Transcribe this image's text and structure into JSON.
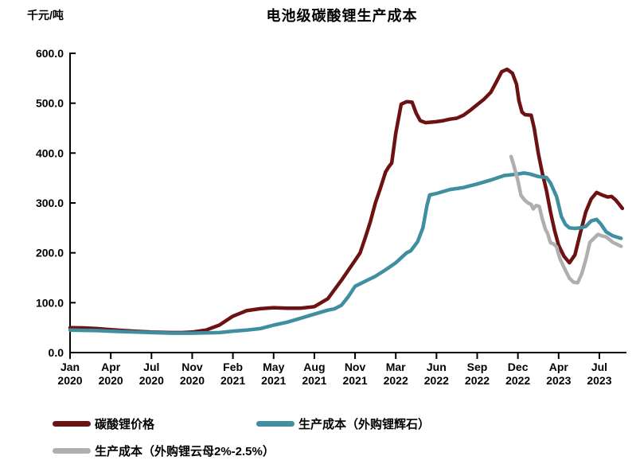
{
  "chart_data": {
    "type": "line",
    "title": "电池级碳酸锂生产成本",
    "unit_label": "千元/吨",
    "grid": false,
    "legend_position": "bottom",
    "ylim": [
      0,
      600
    ],
    "y_ticks": [
      0,
      100,
      200,
      300,
      400,
      500,
      600
    ],
    "y_tick_labels": [
      "0.0",
      "100.0",
      "200.0",
      "300.0",
      "400.0",
      "500.0",
      "600.0"
    ],
    "x_axis_note": "offset = months since Jan 2020",
    "x_ticks": [
      {
        "month": "Jan",
        "year": "2020",
        "offset": 0
      },
      {
        "month": "Apr",
        "year": "2020",
        "offset": 3
      },
      {
        "month": "Jul",
        "year": "2020",
        "offset": 6
      },
      {
        "month": "Nov",
        "year": "2020",
        "offset": 10
      },
      {
        "month": "Feb",
        "year": "2021",
        "offset": 13
      },
      {
        "month": "May",
        "year": "2021",
        "offset": 16
      },
      {
        "month": "Aug",
        "year": "2021",
        "offset": 19
      },
      {
        "month": "Nov",
        "year": "2021",
        "offset": 22
      },
      {
        "month": "Mar",
        "year": "2022",
        "offset": 26
      },
      {
        "month": "Jun",
        "year": "2022",
        "offset": 29
      },
      {
        "month": "Sep",
        "year": "2022",
        "offset": 32
      },
      {
        "month": "Dec",
        "year": "2022",
        "offset": 35
      },
      {
        "month": "Apr",
        "year": "2023",
        "offset": 39
      },
      {
        "month": "Jul",
        "year": "2023",
        "offset": 42
      }
    ],
    "series": [
      {
        "name": "碳酸锂价格",
        "color": "#6D1213",
        "points": [
          [
            0,
            50
          ],
          [
            1,
            49.5
          ],
          [
            2,
            48
          ],
          [
            3,
            46
          ],
          [
            4,
            44
          ],
          [
            5,
            42.5
          ],
          [
            6,
            41
          ],
          [
            7,
            40.5
          ],
          [
            8,
            40
          ],
          [
            9,
            40
          ],
          [
            10,
            41
          ],
          [
            11,
            45
          ],
          [
            12,
            55
          ],
          [
            13,
            73
          ],
          [
            14,
            84
          ],
          [
            15,
            88
          ],
          [
            16,
            90
          ],
          [
            17,
            89
          ],
          [
            18,
            89
          ],
          [
            19,
            92
          ],
          [
            20,
            108
          ],
          [
            21,
            145
          ],
          [
            22,
            185
          ],
          [
            22.5,
            200
          ],
          [
            23,
            230
          ],
          [
            23.5,
            262
          ],
          [
            24,
            300
          ],
          [
            24.5,
            330
          ],
          [
            25,
            362
          ],
          [
            25.3,
            372
          ],
          [
            25.6,
            380
          ],
          [
            26,
            440
          ],
          [
            26.4,
            498
          ],
          [
            26.8,
            503
          ],
          [
            27.2,
            502
          ],
          [
            27.5,
            480
          ],
          [
            27.8,
            465
          ],
          [
            28.2,
            461
          ],
          [
            29,
            463
          ],
          [
            29.5,
            465
          ],
          [
            30,
            468
          ],
          [
            30.5,
            470
          ],
          [
            31,
            476
          ],
          [
            31.5,
            486
          ],
          [
            32,
            497
          ],
          [
            32.5,
            508
          ],
          [
            33,
            522
          ],
          [
            33.4,
            542
          ],
          [
            33.8,
            563
          ],
          [
            34.2,
            568
          ],
          [
            34.6,
            560
          ],
          [
            34.9,
            538
          ],
          [
            35.1,
            505
          ],
          [
            35.4,
            482
          ],
          [
            35.7,
            477
          ],
          [
            36.3,
            476
          ],
          [
            36.6,
            450
          ],
          [
            37,
            400
          ],
          [
            37.4,
            360
          ],
          [
            37.8,
            325
          ],
          [
            38.2,
            282
          ],
          [
            38.6,
            245
          ],
          [
            39,
            215
          ],
          [
            39.4,
            193
          ],
          [
            39.8,
            180
          ],
          [
            40.2,
            196
          ],
          [
            40.6,
            240
          ],
          [
            41,
            282
          ],
          [
            41.4,
            308
          ],
          [
            41.8,
            321
          ],
          [
            42.2,
            316
          ],
          [
            42.6,
            312
          ],
          [
            42.9,
            313
          ],
          [
            43.2,
            306
          ],
          [
            43.5,
            296
          ],
          [
            43.7,
            289
          ]
        ]
      },
      {
        "name": "生产成本（外购锂辉石）",
        "color": "#3F8FA0",
        "points": [
          [
            0,
            45
          ],
          [
            1,
            44.5
          ],
          [
            2,
            44
          ],
          [
            3,
            43
          ],
          [
            4,
            42
          ],
          [
            5,
            41
          ],
          [
            6,
            40
          ],
          [
            7,
            39.5
          ],
          [
            8,
            39
          ],
          [
            9,
            39
          ],
          [
            10,
            39
          ],
          [
            11,
            39.5
          ],
          [
            12,
            40
          ],
          [
            13,
            43
          ],
          [
            14,
            45
          ],
          [
            15,
            48
          ],
          [
            16,
            55
          ],
          [
            17,
            61
          ],
          [
            18,
            69
          ],
          [
            19,
            77
          ],
          [
            20,
            85
          ],
          [
            20.5,
            88
          ],
          [
            21,
            95
          ],
          [
            21.5,
            112
          ],
          [
            22,
            133
          ],
          [
            23,
            143
          ],
          [
            24,
            153
          ],
          [
            25,
            166
          ],
          [
            26,
            180
          ],
          [
            26.8,
            200
          ],
          [
            27.1,
            204
          ],
          [
            27.6,
            222
          ],
          [
            28,
            250
          ],
          [
            28.3,
            295
          ],
          [
            28.5,
            316
          ],
          [
            29,
            319
          ],
          [
            30,
            327
          ],
          [
            31,
            331
          ],
          [
            32,
            338
          ],
          [
            33,
            346
          ],
          [
            34,
            355
          ],
          [
            35,
            358
          ],
          [
            35.6,
            360
          ],
          [
            36.2,
            358
          ],
          [
            37,
            353
          ],
          [
            37.8,
            351
          ],
          [
            38.2,
            340
          ],
          [
            38.8,
            313
          ],
          [
            39.2,
            273
          ],
          [
            39.5,
            257
          ],
          [
            39.8,
            250
          ],
          [
            40.2,
            249
          ],
          [
            40.6,
            250
          ],
          [
            41,
            253
          ],
          [
            41.4,
            264
          ],
          [
            41.8,
            267
          ],
          [
            42.1,
            258
          ],
          [
            42.5,
            242
          ],
          [
            43,
            234
          ],
          [
            43.6,
            229
          ]
        ]
      },
      {
        "name": "生产成本（外购锂云母2%-2.5%）",
        "color": "#AFAFAF",
        "points": [
          [
            34.5,
            393
          ],
          [
            34.7,
            375
          ],
          [
            35,
            345
          ],
          [
            35.3,
            315
          ],
          [
            35.7,
            305
          ],
          [
            36,
            300
          ],
          [
            36.3,
            297
          ],
          [
            36.5,
            288
          ],
          [
            36.8,
            295
          ],
          [
            37.1,
            293
          ],
          [
            37.4,
            268
          ],
          [
            37.7,
            247
          ],
          [
            37.9,
            240
          ],
          [
            38.2,
            220
          ],
          [
            38.5,
            218
          ],
          [
            38.8,
            212
          ],
          [
            39.1,
            188
          ],
          [
            39.5,
            165
          ],
          [
            39.8,
            149
          ],
          [
            40.1,
            141
          ],
          [
            40.4,
            140
          ],
          [
            40.7,
            158
          ],
          [
            41,
            186
          ],
          [
            41.3,
            221
          ],
          [
            41.6,
            229
          ],
          [
            41.9,
            237
          ],
          [
            42.2,
            234
          ],
          [
            42.5,
            232
          ],
          [
            43,
            221
          ],
          [
            43.6,
            213
          ]
        ]
      }
    ]
  }
}
